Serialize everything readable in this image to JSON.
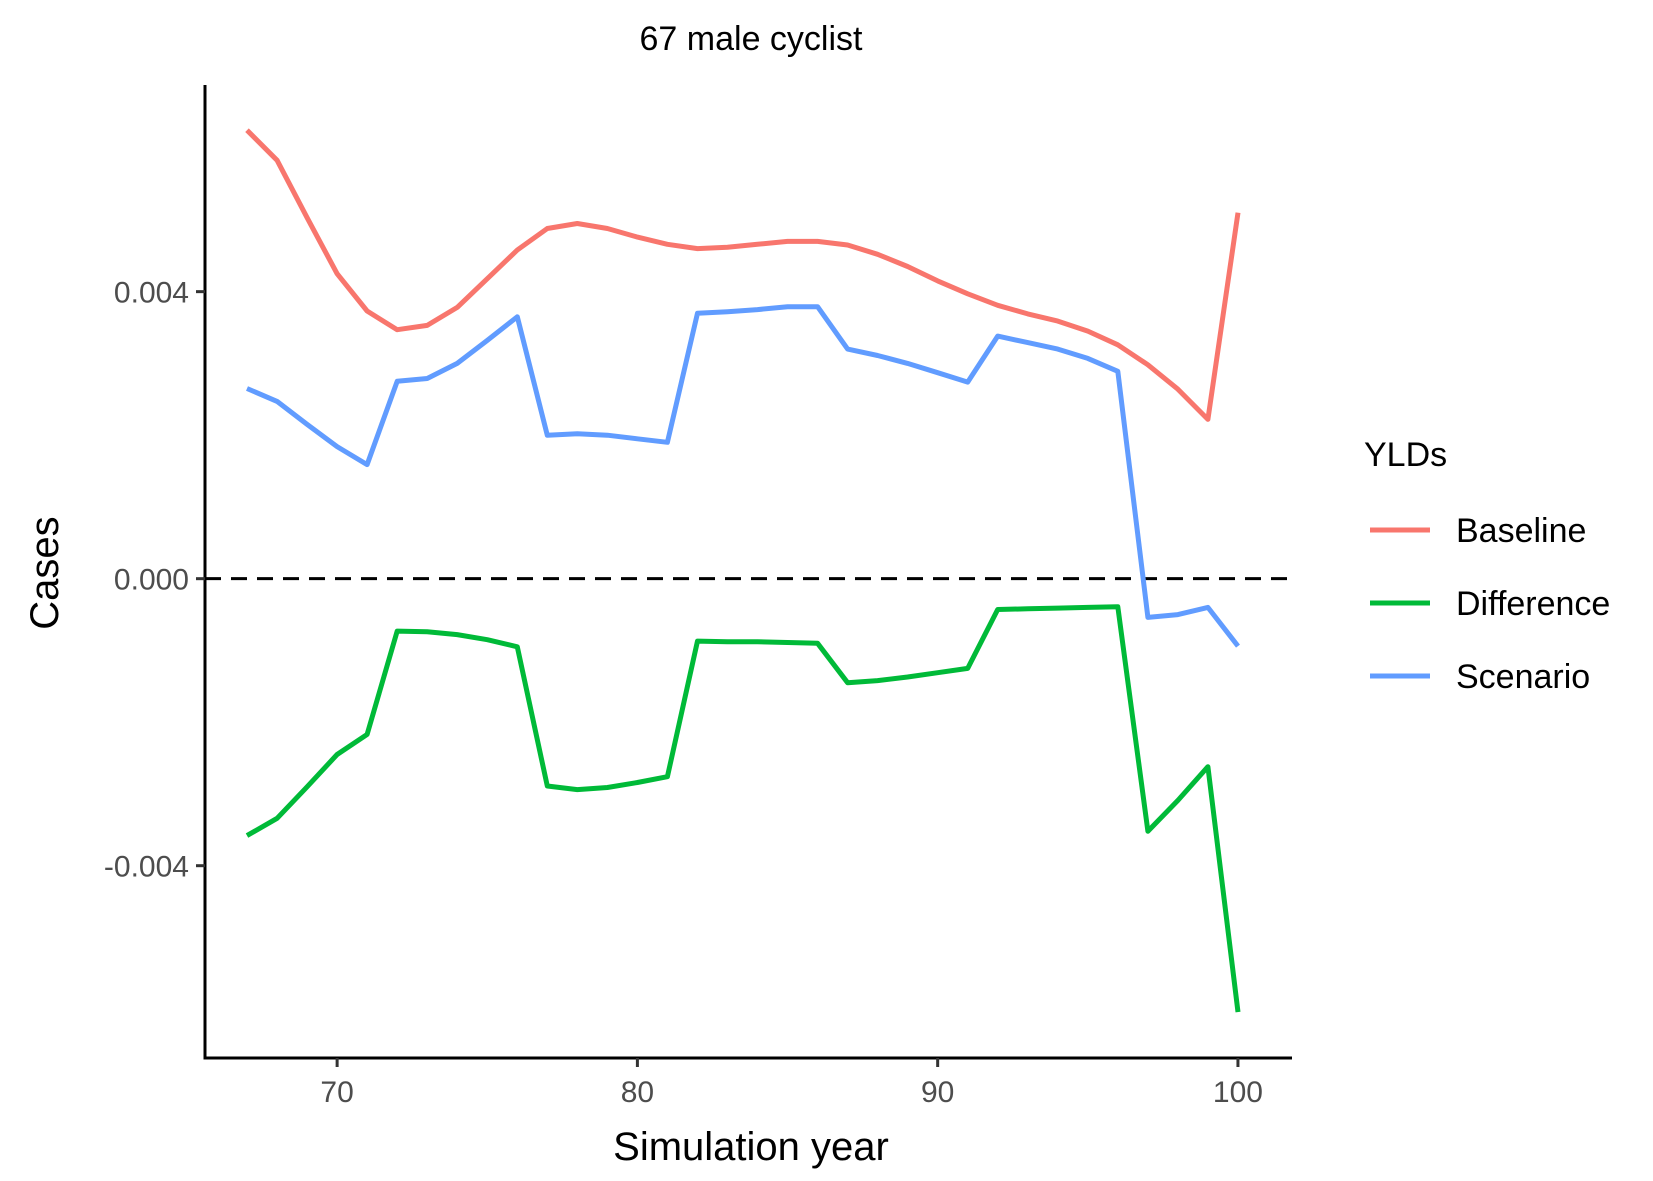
{
  "chart_data": {
    "type": "line",
    "title": "67 male cyclist",
    "xlabel": "Simulation year",
    "ylabel": "Cases",
    "xlim": [
      65.6,
      101.8
    ],
    "ylim": [
      -0.00668,
      0.00688
    ],
    "x_ticks": [
      70,
      80,
      90,
      100
    ],
    "x_tick_labels": [
      "70",
      "80",
      "90",
      "100"
    ],
    "y_ticks": [
      -0.004,
      0.0,
      0.004
    ],
    "y_tick_labels": [
      "-0.004",
      "0.000",
      "0.004"
    ],
    "reference_line": {
      "y": 0.0,
      "style": "dashed",
      "color": "#000000"
    },
    "grid": false,
    "legend": {
      "title": "YLDs",
      "position": "right"
    },
    "x": [
      67,
      68,
      69,
      70,
      71,
      72,
      73,
      74,
      75,
      76,
      77,
      78,
      79,
      80,
      81,
      82,
      83,
      84,
      85,
      86,
      87,
      88,
      89,
      90,
      91,
      92,
      93,
      94,
      95,
      96,
      97,
      98,
      99,
      100
    ],
    "series": [
      {
        "name": "Baseline",
        "color": "#F8766D",
        "values": [
          0.00625,
          0.00583,
          0.00503,
          0.00425,
          0.00373,
          0.00347,
          0.00353,
          0.00378,
          0.00418,
          0.00458,
          0.00488,
          0.00495,
          0.00488,
          0.00476,
          0.00466,
          0.0046,
          0.00462,
          0.00466,
          0.0047,
          0.0047,
          0.00465,
          0.00452,
          0.00435,
          0.00415,
          0.00397,
          0.00381,
          0.00369,
          0.00359,
          0.00345,
          0.00326,
          0.00298,
          0.00264,
          0.00222,
          0.0051
        ]
      },
      {
        "name": "Difference",
        "color": "#00BA38",
        "values": [
          -0.00358,
          -0.00334,
          -0.0029,
          -0.00245,
          -0.00217,
          -0.00073,
          -0.00074,
          -0.00078,
          -0.00085,
          -0.00095,
          -0.00289,
          -0.00294,
          -0.00291,
          -0.00284,
          -0.00276,
          -0.00087,
          -0.00088,
          -0.00088,
          -0.00089,
          -0.0009,
          -0.00145,
          -0.00142,
          -0.00137,
          -0.00131,
          -0.00125,
          -0.00043,
          -0.00042,
          -0.00041,
          -0.0004,
          -0.00039,
          -0.00352,
          -0.00309,
          -0.00262,
          -0.00604
        ]
      },
      {
        "name": "Scenario",
        "color": "#619CFF",
        "values": [
          0.00265,
          0.00247,
          0.00215,
          0.00184,
          0.00159,
          0.00275,
          0.00279,
          0.003,
          0.00332,
          0.00365,
          0.002,
          0.00202,
          0.002,
          0.00195,
          0.0019,
          0.0037,
          0.00372,
          0.00375,
          0.00379,
          0.00379,
          0.0032,
          0.00311,
          0.003,
          0.00287,
          0.00274,
          0.00338,
          0.00329,
          0.0032,
          0.00307,
          0.00289,
          -0.00054,
          -0.0005,
          -0.0004,
          -0.00094
        ]
      }
    ]
  }
}
